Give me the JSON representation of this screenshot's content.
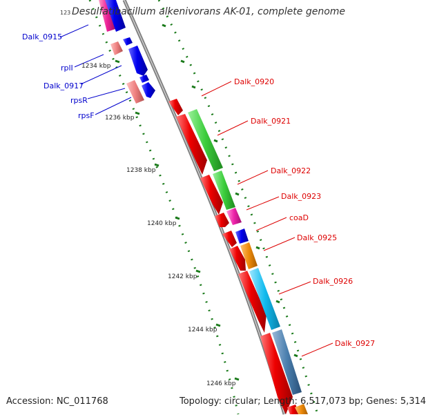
{
  "title": "Desulfatibacillum alkenivorans AK-01, complete genome",
  "title_prefix": "123",
  "accession": "Accession: NC_011768",
  "summary": "Topology: circular; Length: 6,517,073 bp; Genes: 5,314",
  "ticks": [
    "1234 kbp",
    "1236 kbp",
    "1238 kbp",
    "1240 kbp",
    "1242 kbp",
    "1244 kbp",
    "1246 kbp"
  ],
  "left_labels": [
    "Dalk_0915",
    "rplI",
    "Dalk_0917",
    "rpsR",
    "rpsF"
  ],
  "right_labels": [
    "Dalk_0920",
    "Dalk_0921",
    "Dalk_0922",
    "Dalk_0923",
    "coaD",
    "Dalk_0925",
    "Dalk_0926",
    "Dalk_0927"
  ],
  "colors": {
    "forward_cds": "#0000ee",
    "reverse_cds": "#ee0000",
    "rna_pink": "#ee4f8c",
    "rna_salmon": "#ee8080",
    "go_green": "#3ccd3c",
    "go_magenta": "#ee22aa",
    "go_orange": "#ee8a0a",
    "go_cyan": "#11bbee",
    "go_steel": "#4a7fae",
    "backbone": "#808080",
    "tick": "#1a7a1a",
    "left_label": "#0000cc",
    "right_label": "#cc0000"
  }
}
